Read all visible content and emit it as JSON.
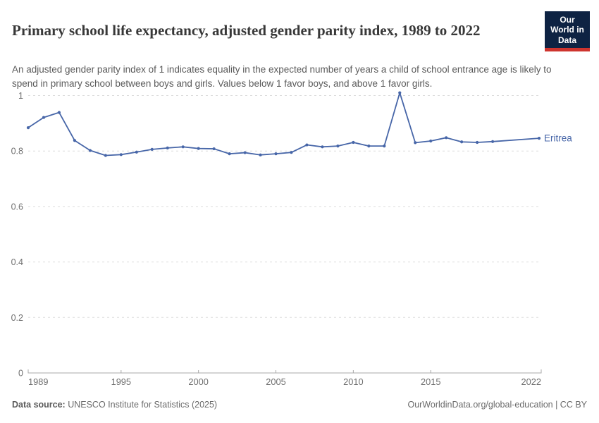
{
  "header": {
    "title": "Primary school life expectancy, adjusted gender parity index, 1989 to 2022",
    "subtitle": "An adjusted gender parity index of 1 indicates equality in the expected number of years a child of school entrance age is likely to spend in primary school between boys and girls. Values below 1 favor boys, and above 1 favor girls.",
    "logo_text": "Our World in Data",
    "logo_bg": "#0e2343",
    "logo_accent": "#ce342e"
  },
  "footer": {
    "source_label": "Data source:",
    "source_value": " UNESCO Institute for Statistics (2025)",
    "link_text": "OurWorldinData.org/global-education | CC BY"
  },
  "chart_data": {
    "type": "line",
    "title": "Primary school life expectancy, adjusted gender parity index, 1989 to 2022",
    "xlabel": "",
    "ylabel": "",
    "xlim": [
      1989,
      2022
    ],
    "ylim": [
      0,
      1.05
    ],
    "xticks": [
      1989,
      1995,
      2000,
      2005,
      2010,
      2015,
      2022
    ],
    "yticks": [
      0,
      0.2,
      0.4,
      0.6,
      0.8,
      1
    ],
    "grid": "horizontal-dashed",
    "legend_position": "end-of-line-label",
    "series": [
      {
        "name": "Eritrea",
        "points": [
          [
            1989,
            0.884
          ],
          [
            1990,
            0.921
          ],
          [
            1991,
            0.939
          ],
          [
            1992,
            0.838
          ],
          [
            1993,
            0.802
          ],
          [
            1994,
            0.784
          ],
          [
            1995,
            0.787
          ],
          [
            1996,
            0.796
          ],
          [
            1997,
            0.806
          ],
          [
            1998,
            0.811
          ],
          [
            1999,
            0.815
          ],
          [
            2000,
            0.809
          ],
          [
            2001,
            0.808
          ],
          [
            2002,
            0.79
          ],
          [
            2003,
            0.794
          ],
          [
            2004,
            0.786
          ],
          [
            2005,
            0.79
          ],
          [
            2006,
            0.795
          ],
          [
            2007,
            0.822
          ],
          [
            2008,
            0.815
          ],
          [
            2009,
            0.818
          ],
          [
            2010,
            0.831
          ],
          [
            2011,
            0.818
          ],
          [
            2012,
            0.818
          ],
          [
            2013,
            1.01
          ],
          [
            2014,
            0.83
          ],
          [
            2015,
            0.836
          ],
          [
            2016,
            0.848
          ],
          [
            2017,
            0.833
          ],
          [
            2018,
            0.831
          ],
          [
            2019,
            0.834
          ],
          [
            2022,
            0.846
          ]
        ]
      }
    ],
    "colors": {
      "line": "#4766a8",
      "grid": "#dcdcdc",
      "axis": "#a8a8a8",
      "tick_label": "#6e6e6e"
    }
  }
}
